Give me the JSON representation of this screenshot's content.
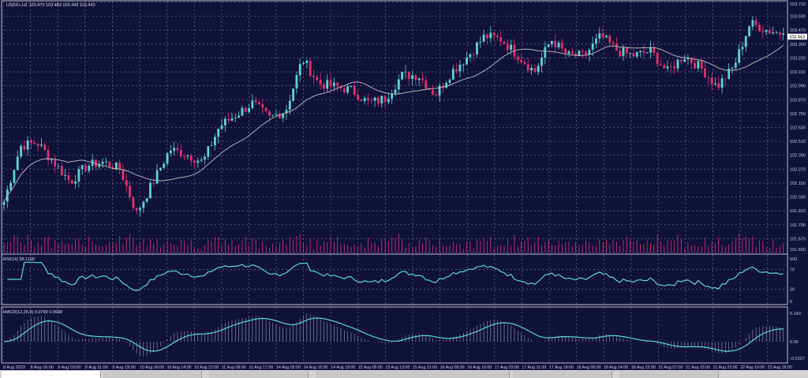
{
  "header": {
    "symbol_info": "USDX+,H1  103.473 103.483 103.443 103.443"
  },
  "colors": {
    "background": "#10123a",
    "bull": "#5ed3d3",
    "bear": "#e0306e",
    "ma": "#b0b0b0",
    "grid": "#5a5f80",
    "axis": "#c8c8d8"
  },
  "chart_data": [
    {
      "type": "candlestick",
      "title": "USDX+,H1",
      "price_axis_labels": [
        "103.710",
        "103.590",
        "103.470",
        "103.350",
        "103.230",
        "103.110",
        "102.990",
        "102.870",
        "102.750",
        "102.630",
        "102.510",
        "102.390",
        "102.270",
        "102.150",
        "102.030",
        "101.910",
        "101.790",
        "101.670",
        "101.550"
      ],
      "ylim": [
        101.55,
        103.71
      ],
      "current_price": "103.443",
      "time_labels": [
        "8 Aug 2023",
        "8 Aug 16:00",
        "9 Aug 03:00",
        "9 Aug 11:00",
        "9 Aug 19:00",
        "10 Aug 06:00",
        "10 Aug 14:00",
        "10 Aug 22:00",
        "11 Aug 09:00",
        "11 Aug 17:00",
        "14 Aug 02:00",
        "14 Aug 10:00",
        "14 Aug 18:00",
        "15 Aug 05:00",
        "15 Aug 13:00",
        "15 Aug 21:00",
        "16 Aug 08:00",
        "16 Aug 16:00",
        "17 Aug 03:00",
        "17 Aug 11:00",
        "17 Aug 19:00",
        "18 Aug 06:00",
        "18 Aug 14:00",
        "18 Aug 22:00",
        "21 Aug 07:00",
        "21 Aug 15:00",
        "21 Aug 23:00",
        "22 Aug 10:00",
        "22 Aug 18:00"
      ],
      "close_path": [
        101.99,
        102.47,
        102.5,
        102.33,
        102.16,
        102.3,
        102.33,
        102.27,
        101.89,
        102.16,
        102.44,
        102.4,
        102.33,
        102.64,
        102.74,
        102.84,
        102.71,
        102.78,
        103.22,
        103.01,
        102.98,
        102.95,
        102.84,
        102.88,
        103.08,
        103.08,
        102.91,
        103.11,
        103.25,
        103.42,
        103.39,
        103.25,
        103.11,
        103.39,
        103.25,
        103.25,
        103.42,
        103.29,
        103.25,
        103.29,
        103.11,
        103.25,
        103.15,
        102.98,
        103.15,
        103.53,
        103.47,
        103.44
      ],
      "moving_average": true,
      "volume": true
    },
    {
      "type": "line",
      "title": "RSI(14) 58.1190",
      "ylim": [
        0,
        100
      ],
      "levels": [
        "100",
        "70",
        "30",
        "0"
      ]
    },
    {
      "type": "histogram+line",
      "title": "MACD(12,26,9) 0.0799 0.0698",
      "axis_labels": [
        "0.143",
        "0.00",
        "-0.1037"
      ],
      "ylim": [
        -0.1037,
        0.143
      ]
    }
  ]
}
